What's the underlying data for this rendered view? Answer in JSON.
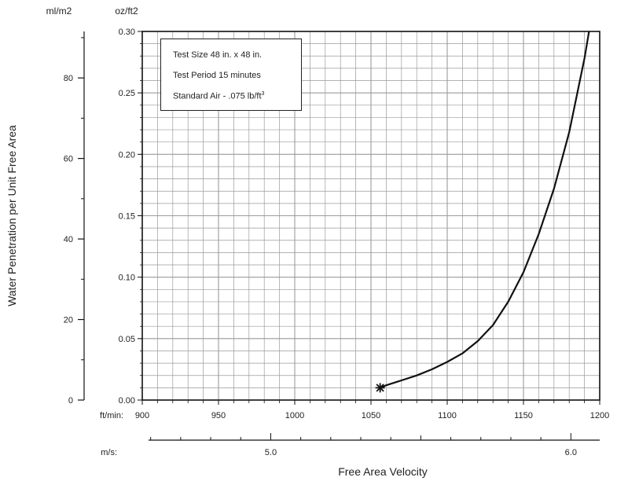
{
  "chart_data": {
    "type": "line",
    "title": "",
    "xlabel": "Free Area Velocity",
    "ylabel": "Water Penetration per Unit Free Area",
    "x_primary": {
      "unit": "ft/min:",
      "range": [
        900,
        1200
      ],
      "ticks": [
        "900",
        "950",
        "1000",
        "1050",
        "1100",
        "1150",
        "1200"
      ]
    },
    "x_secondary": {
      "unit": "m/s:",
      "ticks": [
        "5.0",
        "6.0"
      ]
    },
    "y_left": {
      "unit": "ml/m2",
      "ticks": [
        "0",
        "20",
        "40",
        "60",
        "80"
      ]
    },
    "y_right": {
      "unit": "oz/ft2",
      "range": [
        0,
        0.3
      ],
      "ticks": [
        "0.00",
        "0.05",
        "0.10",
        "0.15",
        "0.20",
        "0.25",
        "0.30"
      ]
    },
    "grid": true,
    "annotations": [
      "Test Size 48 in. x 48 in.",
      "Test Period 15 minutes",
      "Standard Air - .075 lb/ft"
    ],
    "annotation_superscript": "3",
    "start_marker": {
      "x": 1056,
      "y": 0.01
    },
    "series": [
      {
        "x": [
          1056,
          1060,
          1070,
          1080,
          1090,
          1100,
          1110,
          1120,
          1130,
          1140,
          1150,
          1160,
          1170,
          1180,
          1190,
          1193
        ],
        "y": [
          0.01,
          0.012,
          0.016,
          0.02,
          0.025,
          0.031,
          0.038,
          0.048,
          0.061,
          0.08,
          0.104,
          0.135,
          0.172,
          0.218,
          0.278,
          0.3
        ]
      }
    ],
    "colors": {
      "line": "#111111",
      "grid": "#9a9a9a",
      "axis": "#111111"
    }
  }
}
